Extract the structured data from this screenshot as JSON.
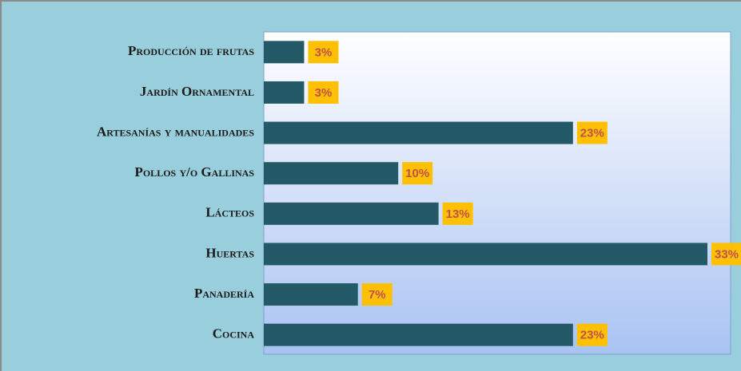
{
  "chart_data": {
    "type": "bar",
    "orientation": "horizontal",
    "categories": [
      "Producción de frutas",
      "Jardín Ornamental",
      "Artesanías y manualidades",
      "Pollos y/o Gallinas",
      "Lácteos",
      "Huertas",
      "Panadería",
      "Cocina"
    ],
    "values": [
      3,
      3,
      23,
      10,
      13,
      33,
      7,
      23
    ],
    "value_labels": [
      "3%",
      "3%",
      "23%",
      "10%",
      "13%",
      "33%",
      "7%",
      "23%"
    ],
    "color": "#245a68",
    "label_color": "#ffc000"
  }
}
